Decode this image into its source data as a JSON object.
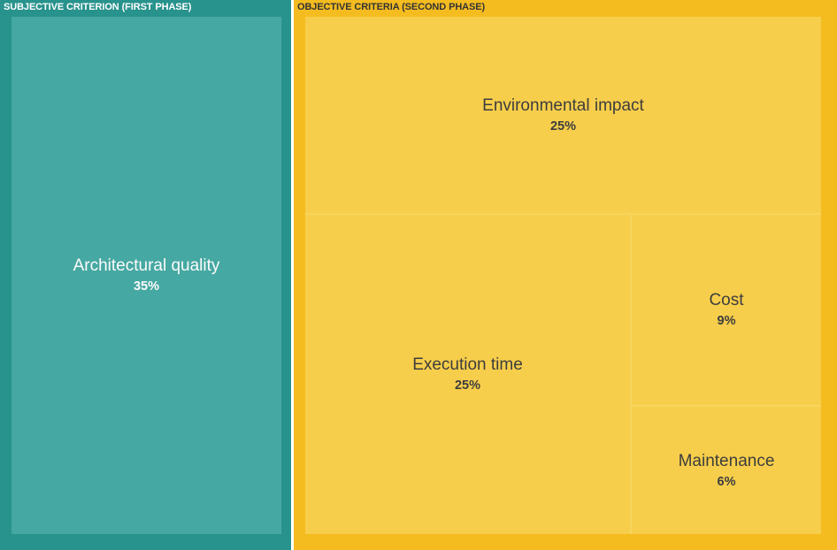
{
  "groups": {
    "subjective": {
      "header": "SUBJECTIVE CRITERION (FIRST PHASE)"
    },
    "objective": {
      "header": "OBJECTIVE CRITERIA (SECOND PHASE)"
    }
  },
  "tiles": {
    "architectural": {
      "name": "Architectural quality",
      "pct": "35%"
    },
    "environmental": {
      "name": "Environmental impact",
      "pct": "25%"
    },
    "execution": {
      "name": "Execution time",
      "pct": "25%"
    },
    "cost": {
      "name": "Cost",
      "pct": "9%"
    },
    "maintenance": {
      "name": "Maintenance",
      "pct": "6%"
    }
  },
  "colors": {
    "subjective_group_bg": "#28928c",
    "subjective_tile_bg": "#46a8a2",
    "subjective_text": "#ffffff",
    "objective_group_bg": "#f5bc20",
    "objective_tile_bg": "#f7ce4b",
    "objective_tile_gap": "#f8d55e",
    "objective_text": "#3d3d3d",
    "page_bg": "#ffffff"
  },
  "chart_data": {
    "type": "treemap",
    "title": "",
    "legend_position": "none",
    "groups": [
      {
        "name": "SUBJECTIVE CRITERION (FIRST PHASE)",
        "group_color": "#28928c",
        "tile_color": "#46a8a2",
        "children": [
          {
            "name": "Architectural quality",
            "value_pct": 35
          }
        ]
      },
      {
        "name": "OBJECTIVE CRITERIA (SECOND PHASE)",
        "group_color": "#f5bc20",
        "tile_color": "#f7ce4b",
        "children": [
          {
            "name": "Environmental impact",
            "value_pct": 25
          },
          {
            "name": "Execution time",
            "value_pct": 25
          },
          {
            "name": "Cost",
            "value_pct": 9
          },
          {
            "name": "Maintenance",
            "value_pct": 6
          }
        ]
      }
    ]
  }
}
